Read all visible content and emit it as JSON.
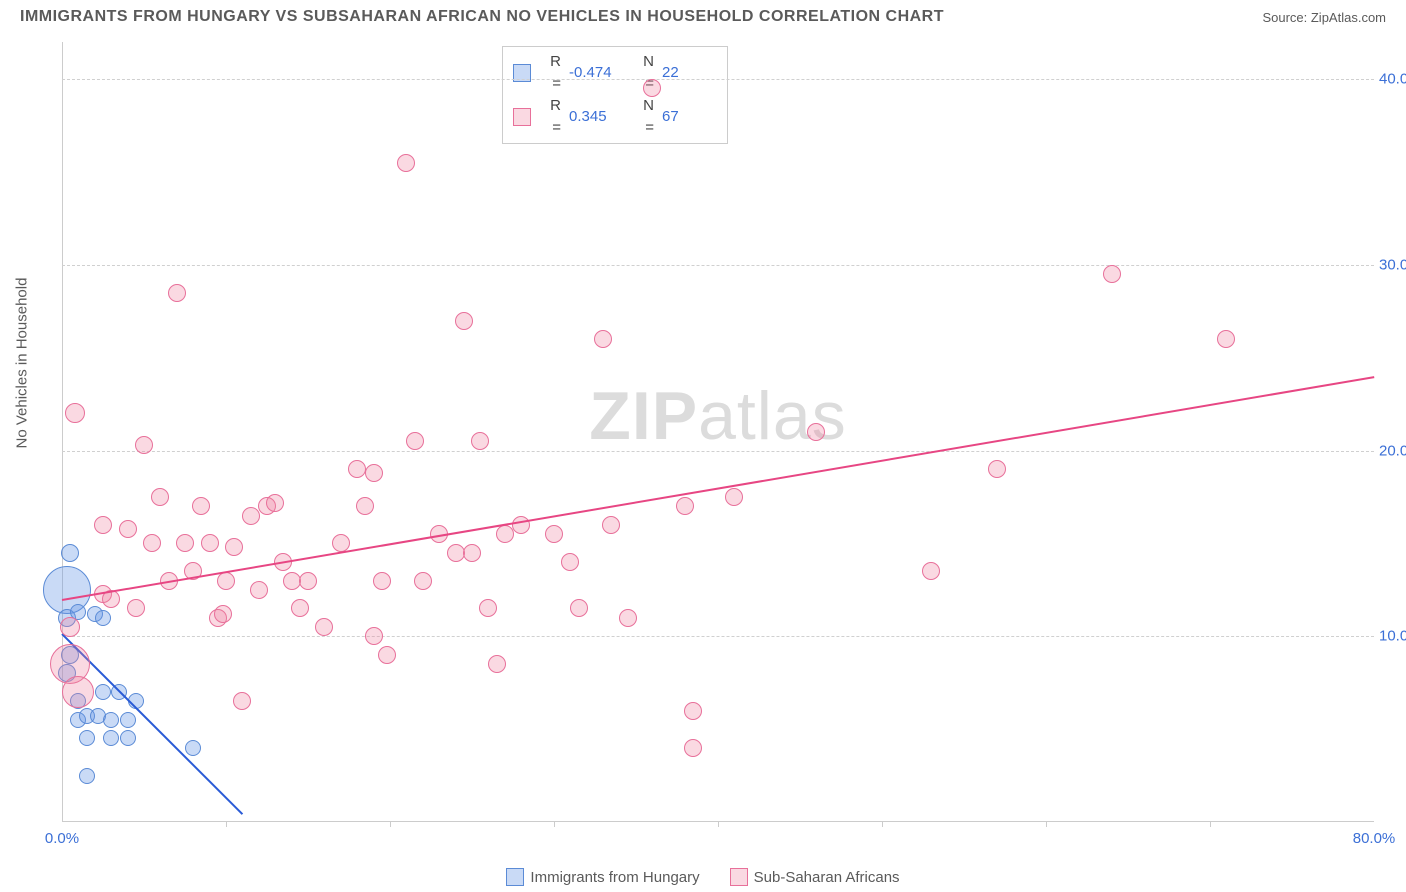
{
  "header": {
    "title": "IMMIGRANTS FROM HUNGARY VS SUBSAHARAN AFRICAN NO VEHICLES IN HOUSEHOLD CORRELATION CHART",
    "source": "Source: ZipAtlas.com"
  },
  "chart": {
    "type": "scatter",
    "y_label": "No Vehicles in Household",
    "xlim": [
      0,
      80
    ],
    "ylim": [
      0,
      42
    ],
    "x_ticks": [
      0,
      80
    ],
    "x_tick_labels": [
      "0.0%",
      "80.0%"
    ],
    "y_ticks": [
      10,
      20,
      30,
      40
    ],
    "y_tick_labels": [
      "10.0%",
      "20.0%",
      "30.0%",
      "40.0%"
    ],
    "grid_color": "#d0d0d0",
    "axis_color": "#cccccc",
    "tick_label_color": "#3b6fd6",
    "background_color": "#ffffff",
    "watermark": "ZIPatlas",
    "series": [
      {
        "name": "Immigrants from Hungary",
        "fill": "rgba(100,150,230,0.35)",
        "stroke": "#5b8bd6",
        "trend_color": "#2a5bd6",
        "R": "-0.474",
        "N": "22",
        "trend": {
          "x1": 0,
          "y1": 10.2,
          "x2": 11,
          "y2": 0.5
        },
        "points": [
          {
            "x": 0.3,
            "y": 12.5,
            "r": 24
          },
          {
            "x": 0.5,
            "y": 14.5,
            "r": 9
          },
          {
            "x": 0.3,
            "y": 11.0,
            "r": 9
          },
          {
            "x": 1.0,
            "y": 11.3,
            "r": 8
          },
          {
            "x": 2.0,
            "y": 11.2,
            "r": 8
          },
          {
            "x": 2.5,
            "y": 11.0,
            "r": 8
          },
          {
            "x": 0.5,
            "y": 9.0,
            "r": 9
          },
          {
            "x": 0.3,
            "y": 8.0,
            "r": 9
          },
          {
            "x": 1.0,
            "y": 6.5,
            "r": 8
          },
          {
            "x": 2.5,
            "y": 7.0,
            "r": 8
          },
          {
            "x": 3.5,
            "y": 7.0,
            "r": 8
          },
          {
            "x": 4.5,
            "y": 6.5,
            "r": 8
          },
          {
            "x": 1.0,
            "y": 5.5,
            "r": 8
          },
          {
            "x": 1.5,
            "y": 5.7,
            "r": 8
          },
          {
            "x": 2.2,
            "y": 5.7,
            "r": 8
          },
          {
            "x": 3.0,
            "y": 5.5,
            "r": 8
          },
          {
            "x": 4.0,
            "y": 5.5,
            "r": 8
          },
          {
            "x": 1.5,
            "y": 4.5,
            "r": 8
          },
          {
            "x": 3.0,
            "y": 4.5,
            "r": 8
          },
          {
            "x": 4.0,
            "y": 4.5,
            "r": 8
          },
          {
            "x": 8.0,
            "y": 4.0,
            "r": 8
          },
          {
            "x": 1.5,
            "y": 2.5,
            "r": 8
          }
        ]
      },
      {
        "name": "Sub-Saharan Africans",
        "fill": "rgba(240,130,160,0.3)",
        "stroke": "#e8709a",
        "trend_color": "#e74683",
        "R": "0.345",
        "N": "67",
        "trend": {
          "x1": 0,
          "y1": 12,
          "x2": 80,
          "y2": 24
        },
        "points": [
          {
            "x": 0.5,
            "y": 8.5,
            "r": 20
          },
          {
            "x": 1.0,
            "y": 7.0,
            "r": 16
          },
          {
            "x": 0.5,
            "y": 10.5,
            "r": 10
          },
          {
            "x": 0.8,
            "y": 22.0,
            "r": 10
          },
          {
            "x": 2.5,
            "y": 12.3,
            "r": 9
          },
          {
            "x": 2.5,
            "y": 16.0,
            "r": 9
          },
          {
            "x": 3.0,
            "y": 12.0,
            "r": 9
          },
          {
            "x": 4.0,
            "y": 15.8,
            "r": 9
          },
          {
            "x": 4.5,
            "y": 11.5,
            "r": 9
          },
          {
            "x": 5.0,
            "y": 20.3,
            "r": 9
          },
          {
            "x": 5.5,
            "y": 15.0,
            "r": 9
          },
          {
            "x": 6.0,
            "y": 17.5,
            "r": 9
          },
          {
            "x": 6.5,
            "y": 13.0,
            "r": 9
          },
          {
            "x": 7.0,
            "y": 28.5,
            "r": 9
          },
          {
            "x": 7.5,
            "y": 15.0,
            "r": 9
          },
          {
            "x": 8.0,
            "y": 13.5,
            "r": 9
          },
          {
            "x": 8.5,
            "y": 17.0,
            "r": 9
          },
          {
            "x": 9.0,
            "y": 15.0,
            "r": 9
          },
          {
            "x": 9.5,
            "y": 11.0,
            "r": 9
          },
          {
            "x": 9.8,
            "y": 11.2,
            "r": 9
          },
          {
            "x": 10.0,
            "y": 13.0,
            "r": 9
          },
          {
            "x": 10.5,
            "y": 14.8,
            "r": 9
          },
          {
            "x": 11.0,
            "y": 6.5,
            "r": 9
          },
          {
            "x": 11.5,
            "y": 16.5,
            "r": 9
          },
          {
            "x": 12.0,
            "y": 12.5,
            "r": 9
          },
          {
            "x": 12.5,
            "y": 17.0,
            "r": 9
          },
          {
            "x": 13.0,
            "y": 17.2,
            "r": 9
          },
          {
            "x": 13.5,
            "y": 14.0,
            "r": 9
          },
          {
            "x": 14.0,
            "y": 13.0,
            "r": 9
          },
          {
            "x": 14.5,
            "y": 11.5,
            "r": 9
          },
          {
            "x": 15.0,
            "y": 13.0,
            "r": 9
          },
          {
            "x": 16.0,
            "y": 10.5,
            "r": 9
          },
          {
            "x": 17.0,
            "y": 15.0,
            "r": 9
          },
          {
            "x": 18.0,
            "y": 19.0,
            "r": 9
          },
          {
            "x": 18.5,
            "y": 17.0,
            "r": 9
          },
          {
            "x": 19.0,
            "y": 10.0,
            "r": 9
          },
          {
            "x": 19.0,
            "y": 18.8,
            "r": 9
          },
          {
            "x": 19.5,
            "y": 13.0,
            "r": 9
          },
          {
            "x": 19.8,
            "y": 9.0,
            "r": 9
          },
          {
            "x": 21.0,
            "y": 35.5,
            "r": 9
          },
          {
            "x": 21.5,
            "y": 20.5,
            "r": 9
          },
          {
            "x": 22.0,
            "y": 13.0,
            "r": 9
          },
          {
            "x": 23.0,
            "y": 15.5,
            "r": 9
          },
          {
            "x": 24.0,
            "y": 14.5,
            "r": 9
          },
          {
            "x": 24.5,
            "y": 27.0,
            "r": 9
          },
          {
            "x": 25.0,
            "y": 14.5,
            "r": 9
          },
          {
            "x": 25.5,
            "y": 20.5,
            "r": 9
          },
          {
            "x": 26.0,
            "y": 11.5,
            "r": 9
          },
          {
            "x": 26.5,
            "y": 8.5,
            "r": 9
          },
          {
            "x": 27.0,
            "y": 15.5,
            "r": 9
          },
          {
            "x": 28.0,
            "y": 16.0,
            "r": 9
          },
          {
            "x": 30.0,
            "y": 15.5,
            "r": 9
          },
          {
            "x": 31.0,
            "y": 14.0,
            "r": 9
          },
          {
            "x": 31.5,
            "y": 11.5,
            "r": 9
          },
          {
            "x": 33.0,
            "y": 26.0,
            "r": 9
          },
          {
            "x": 33.5,
            "y": 16.0,
            "r": 9
          },
          {
            "x": 34.5,
            "y": 11.0,
            "r": 9
          },
          {
            "x": 36.0,
            "y": 39.5,
            "r": 9
          },
          {
            "x": 38.0,
            "y": 17.0,
            "r": 9
          },
          {
            "x": 38.5,
            "y": 4.0,
            "r": 9
          },
          {
            "x": 38.5,
            "y": 6.0,
            "r": 9
          },
          {
            "x": 41.0,
            "y": 17.5,
            "r": 9
          },
          {
            "x": 46.0,
            "y": 21.0,
            "r": 9
          },
          {
            "x": 53.0,
            "y": 13.5,
            "r": 9
          },
          {
            "x": 57.0,
            "y": 19.0,
            "r": 9
          },
          {
            "x": 64.0,
            "y": 29.5,
            "r": 9
          },
          {
            "x": 71.0,
            "y": 26.0,
            "r": 9
          }
        ]
      }
    ]
  },
  "stats_box": {
    "r_label": "R =",
    "n_label": "N ="
  }
}
